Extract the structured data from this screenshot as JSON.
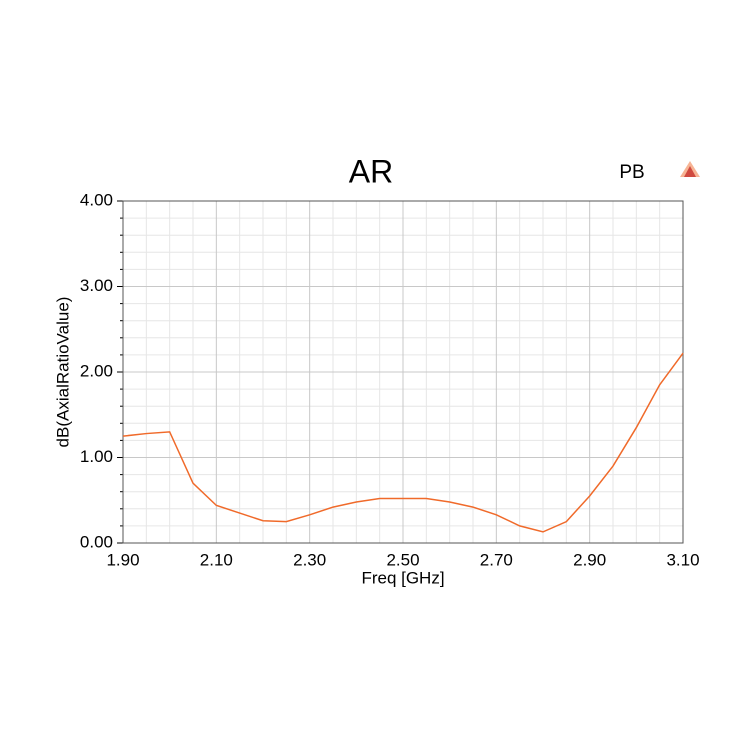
{
  "chart_data": {
    "type": "line",
    "title": "AR",
    "x_label": "Freq [GHz]",
    "y_label": "dB(AxialRatioValue)",
    "x": [
      1.9,
      1.95,
      2.0,
      2.05,
      2.1,
      2.15,
      2.2,
      2.25,
      2.3,
      2.35,
      2.4,
      2.45,
      2.5,
      2.55,
      2.6,
      2.65,
      2.7,
      2.75,
      2.8,
      2.85,
      2.9,
      2.95,
      3.0,
      3.05,
      3.1
    ],
    "series": [
      {
        "name": "PB",
        "color": "#f06a2a",
        "values": [
          1.25,
          1.28,
          1.3,
          0.7,
          0.44,
          0.35,
          0.26,
          0.25,
          0.33,
          0.42,
          0.48,
          0.52,
          0.52,
          0.52,
          0.48,
          0.42,
          0.33,
          0.2,
          0.13,
          0.25,
          0.55,
          0.9,
          1.35,
          1.85,
          2.22
        ]
      }
    ],
    "xlim": [
      1.9,
      3.1
    ],
    "xticks": [
      {
        "value": 1.9,
        "label": "1.90"
      },
      {
        "value": 2.1,
        "label": "2.10"
      },
      {
        "value": 2.3,
        "label": "2.30"
      },
      {
        "value": 2.5,
        "label": "2.50"
      },
      {
        "value": 2.7,
        "label": "2.70"
      },
      {
        "value": 2.9,
        "label": "2.90"
      },
      {
        "value": 3.1,
        "label": "3.10"
      }
    ],
    "ylim": [
      0,
      4
    ],
    "yticks": [
      {
        "value": 0,
        "label": "0.00"
      },
      {
        "value": 1,
        "label": "1.00"
      },
      {
        "value": 2,
        "label": "2.00"
      },
      {
        "value": 3,
        "label": "3.00"
      },
      {
        "value": 4,
        "label": "4.00"
      }
    ],
    "grid": true
  }
}
